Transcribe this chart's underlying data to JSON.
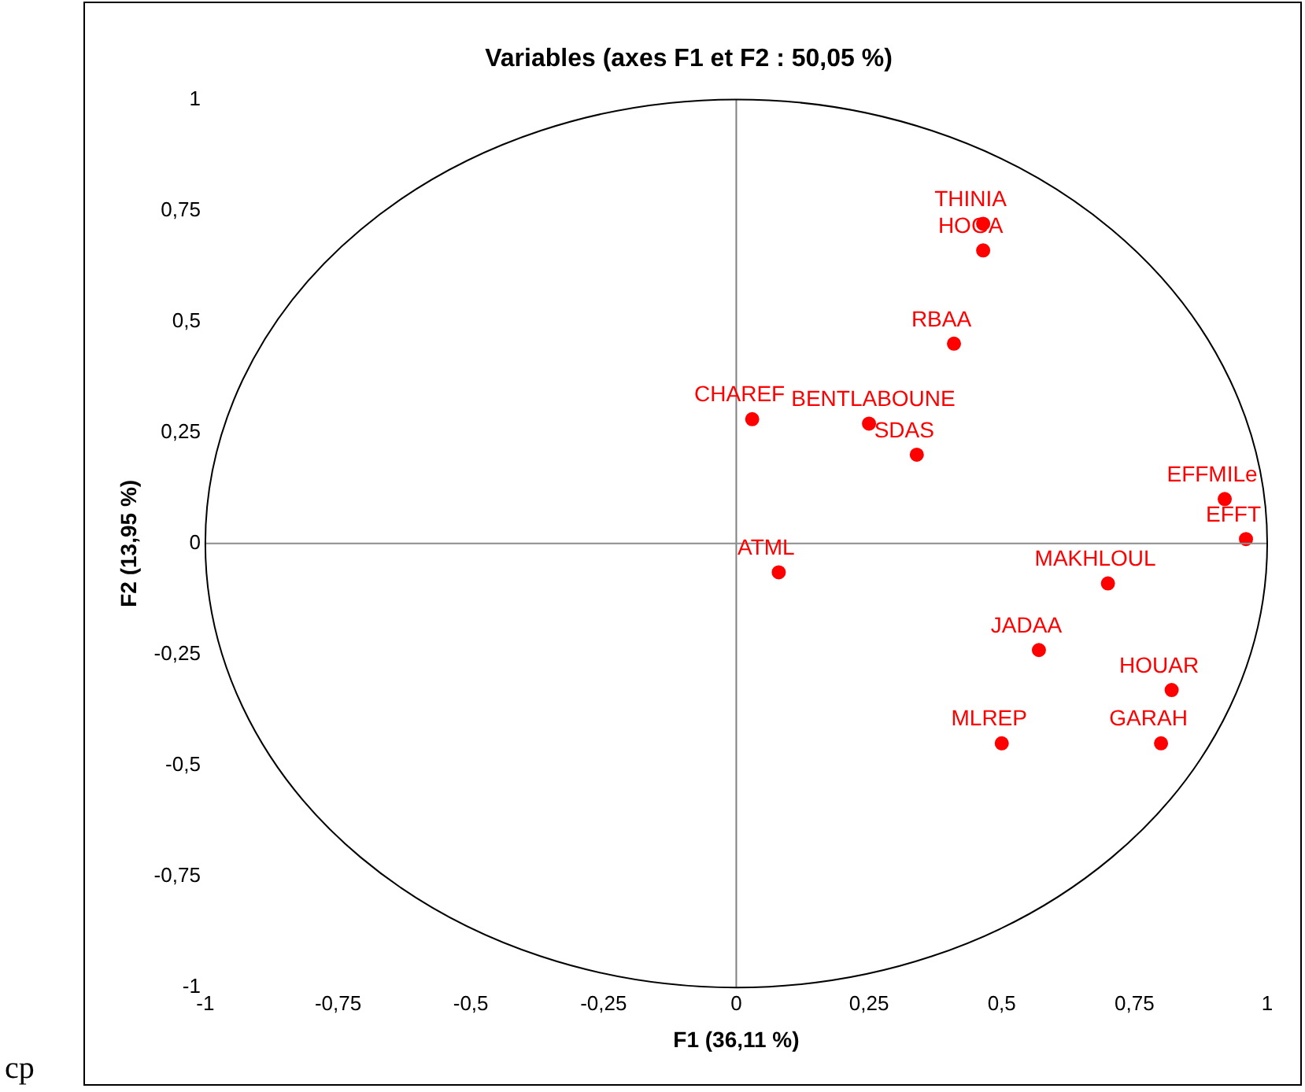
{
  "chart_data": {
    "type": "scatter",
    "title": "Variables (axes F1 et F2 : 50,05 %)",
    "xlabel": "F1 (36,11 %)",
    "ylabel": "F2 (13,95 %)",
    "x": [
      0.03,
      0.25,
      0.34,
      0.41,
      0.465,
      0.465,
      0.92,
      0.96,
      0.7,
      0.57,
      0.82,
      0.8,
      0.5,
      0.08
    ],
    "series": [
      {
        "color": "#ff0000",
        "values": [
          0.28,
          0.27,
          0.2,
          0.45,
          0.66,
          0.72,
          0.1,
          0.01,
          -0.09,
          -0.24,
          -0.33,
          -0.45,
          -0.45,
          -0.065
        ]
      }
    ],
    "marker": "circle",
    "grid": false,
    "legend": false,
    "xlim": [
      -1,
      1
    ],
    "ylim": [
      -1,
      1
    ],
    "xticks": [
      -1,
      {
        "value": -0.75,
        "label": "-0,75"
      },
      {
        "value": -0.5,
        "label": "-0,5"
      },
      {
        "value": -0.25,
        "label": "-0,25"
      },
      0,
      {
        "value": 0.25,
        "label": "0,25"
      },
      {
        "value": 0.5,
        "label": "0,5"
      },
      {
        "value": 0.75,
        "label": "0,75"
      },
      1
    ],
    "yticks": [
      -1,
      {
        "value": -0.75,
        "label": "-0,75"
      },
      {
        "value": -0.5,
        "label": "-0,5"
      },
      {
        "value": -0.25,
        "label": "-0,25"
      },
      0,
      {
        "value": 0.25,
        "label": "0,25"
      },
      {
        "value": 0.5,
        "label": "0,5"
      },
      {
        "value": 0.75,
        "label": "0,75"
      },
      1
    ],
    "ref_lines": [
      {
        "axis": "x",
        "value": 0,
        "color": "#808080"
      },
      {
        "axis": "y",
        "value": 0,
        "color": "#8c8c8c"
      }
    ],
    "annotations": [
      {
        "text": "CHAREF",
        "x": 0.03,
        "y": 0.28
      },
      {
        "text": "BENTLABOUNE",
        "x": 0.25,
        "y": 0.27
      },
      {
        "text": "SDAS",
        "x": 0.34,
        "y": 0.2
      },
      {
        "text": "RBAA",
        "x": 0.41,
        "y": 0.45
      },
      {
        "text": "HOGA",
        "x": 0.465,
        "y": 0.66
      },
      {
        "text": "THINIA",
        "x": 0.465,
        "y": 0.72
      },
      {
        "text": "EFFMILe",
        "x": 0.92,
        "y": 0.1
      },
      {
        "text": "EFFT",
        "x": 0.96,
        "y": 0.01
      },
      {
        "text": "MAKHLOUL",
        "x": 0.7,
        "y": -0.09
      },
      {
        "text": "JADAA",
        "x": 0.57,
        "y": -0.24
      },
      {
        "text": "HOUAR",
        "x": 0.82,
        "y": -0.33
      },
      {
        "text": "GARAH",
        "x": 0.8,
        "y": -0.45
      },
      {
        "text": "MLREP",
        "x": 0.5,
        "y": -0.45
      },
      {
        "text": "ATML",
        "x": 0.08,
        "y": -0.065
      },
      "cp"
    ]
  }
}
